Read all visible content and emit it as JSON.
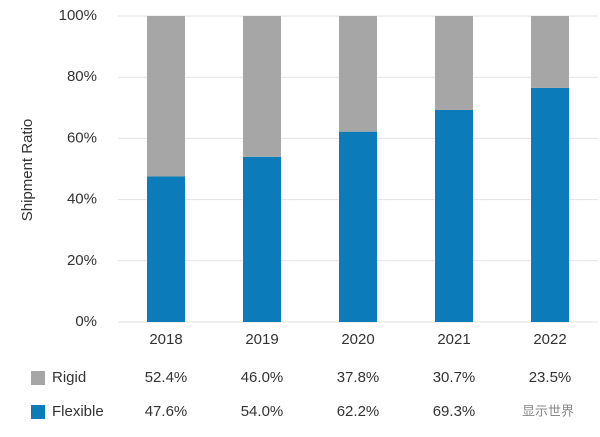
{
  "chart_data": {
    "type": "stacked-bar",
    "y_label": "Shipment Ratio",
    "categories": [
      "2018",
      "2019",
      "2020",
      "2021",
      "2022"
    ],
    "series": [
      {
        "name": "Rigid",
        "color": "#a6a6a6",
        "values": [
          52.4,
          46.0,
          37.8,
          30.7,
          23.5
        ],
        "value_labels": [
          "52.4%",
          "46.0%",
          "37.8%",
          "30.7%",
          "23.5%"
        ]
      },
      {
        "name": "Flexible",
        "color": "#0b7cb9",
        "values": [
          47.6,
          54.0,
          62.2,
          69.3,
          76.5
        ],
        "value_labels": [
          "47.6%",
          "54.0%",
          "62.2%",
          "69.3%",
          null
        ]
      }
    ],
    "ylim": [
      0,
      100
    ],
    "yticks": [
      {
        "value": 0,
        "label": "0%"
      },
      {
        "value": 20,
        "label": "20%"
      },
      {
        "value": 40,
        "label": "40%"
      },
      {
        "value": 60,
        "label": "60%"
      },
      {
        "value": 80,
        "label": "80%"
      },
      {
        "value": 100,
        "label": "100%"
      }
    ],
    "grid": true,
    "watermark": "显示世界"
  }
}
